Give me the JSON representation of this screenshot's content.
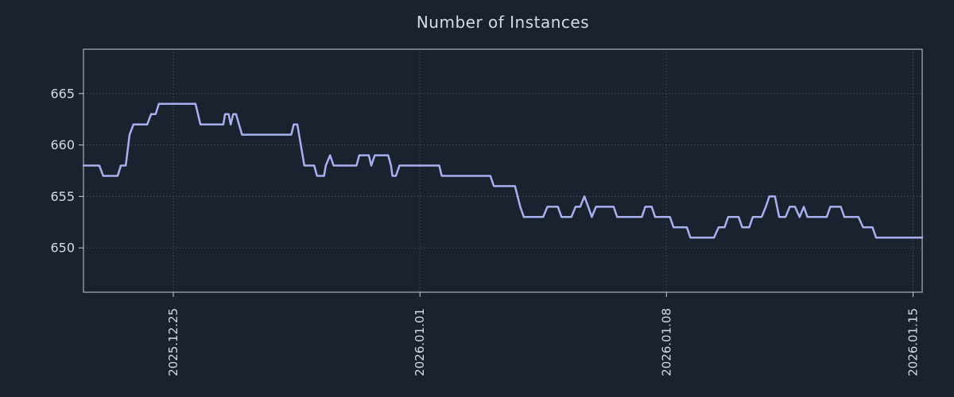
{
  "chart_data": {
    "type": "line",
    "title": "Number of Instances",
    "x_axis": {
      "label": "",
      "x_unit": "days relative to the 2025.12.25 tick",
      "range": [
        -2.55,
        21.26
      ],
      "ticks": [
        {
          "pos": 0,
          "label": "2025.12.25"
        },
        {
          "pos": 7,
          "label": "2026.01.01"
        },
        {
          "pos": 14,
          "label": "2026.01.08"
        },
        {
          "pos": 21,
          "label": "2026.01.15"
        }
      ]
    },
    "y_axis": {
      "label": "",
      "range": [
        645.7,
        669.3
      ],
      "ticks": [
        650,
        655,
        660,
        665
      ]
    },
    "grid": "dotted",
    "legend": "none",
    "colors": {
      "background": "#1a2230",
      "line": "#a8b0ee",
      "grid": "#8a93a5",
      "axis": "#c8cdd7",
      "text": "#d6dae1"
    },
    "series": [
      {
        "name": "Number of Instances",
        "points": [
          [
            -2.55,
            658
          ],
          [
            -2.1,
            658
          ],
          [
            -1.99,
            657
          ],
          [
            -1.58,
            657
          ],
          [
            -1.49,
            658
          ],
          [
            -1.35,
            658
          ],
          [
            -1.24,
            661
          ],
          [
            -1.13,
            662
          ],
          [
            -0.74,
            662
          ],
          [
            -0.63,
            663
          ],
          [
            -0.5,
            663
          ],
          [
            -0.41,
            664
          ],
          [
            0.63,
            664
          ],
          [
            0.77,
            662
          ],
          [
            1.42,
            662
          ],
          [
            1.47,
            663
          ],
          [
            1.57,
            663
          ],
          [
            1.63,
            662
          ],
          [
            1.7,
            663
          ],
          [
            1.78,
            663
          ],
          [
            1.95,
            661
          ],
          [
            3.35,
            661
          ],
          [
            3.42,
            662
          ],
          [
            3.52,
            662
          ],
          [
            3.72,
            658
          ],
          [
            4.0,
            658
          ],
          [
            4.08,
            657
          ],
          [
            4.28,
            657
          ],
          [
            4.33,
            658
          ],
          [
            4.45,
            659
          ],
          [
            4.55,
            658
          ],
          [
            5.2,
            658
          ],
          [
            5.28,
            659
          ],
          [
            5.55,
            659
          ],
          [
            5.62,
            658
          ],
          [
            5.72,
            659
          ],
          [
            6.1,
            659
          ],
          [
            6.18,
            658
          ],
          [
            6.22,
            657
          ],
          [
            6.32,
            657
          ],
          [
            6.42,
            658
          ],
          [
            7.55,
            658
          ],
          [
            7.62,
            657
          ],
          [
            9.0,
            657
          ],
          [
            9.1,
            656
          ],
          [
            9.7,
            656
          ],
          [
            9.85,
            654
          ],
          [
            9.95,
            653
          ],
          [
            10.5,
            653
          ],
          [
            10.62,
            654
          ],
          [
            10.92,
            654
          ],
          [
            11.02,
            653
          ],
          [
            11.3,
            653
          ],
          [
            11.42,
            654
          ],
          [
            11.55,
            654
          ],
          [
            11.67,
            655
          ],
          [
            11.78,
            654
          ],
          [
            11.88,
            653
          ],
          [
            12.0,
            654
          ],
          [
            12.5,
            654
          ],
          [
            12.6,
            653
          ],
          [
            13.3,
            653
          ],
          [
            13.4,
            654
          ],
          [
            13.58,
            654
          ],
          [
            13.68,
            653
          ],
          [
            14.1,
            653
          ],
          [
            14.2,
            652
          ],
          [
            14.58,
            652
          ],
          [
            14.68,
            651
          ],
          [
            15.35,
            651
          ],
          [
            15.48,
            652
          ],
          [
            15.65,
            652
          ],
          [
            15.75,
            653
          ],
          [
            16.05,
            653
          ],
          [
            16.15,
            652
          ],
          [
            16.35,
            652
          ],
          [
            16.45,
            653
          ],
          [
            16.7,
            653
          ],
          [
            16.82,
            654
          ],
          [
            16.92,
            655
          ],
          [
            17.08,
            655
          ],
          [
            17.2,
            653
          ],
          [
            17.38,
            653
          ],
          [
            17.5,
            654
          ],
          [
            17.65,
            654
          ],
          [
            17.78,
            653
          ],
          [
            17.9,
            654
          ],
          [
            18.0,
            653
          ],
          [
            18.55,
            653
          ],
          [
            18.65,
            654
          ],
          [
            18.95,
            654
          ],
          [
            19.05,
            653
          ],
          [
            19.45,
            653
          ],
          [
            19.58,
            652
          ],
          [
            19.85,
            652
          ],
          [
            19.95,
            651
          ],
          [
            21.26,
            651
          ]
        ]
      }
    ]
  }
}
